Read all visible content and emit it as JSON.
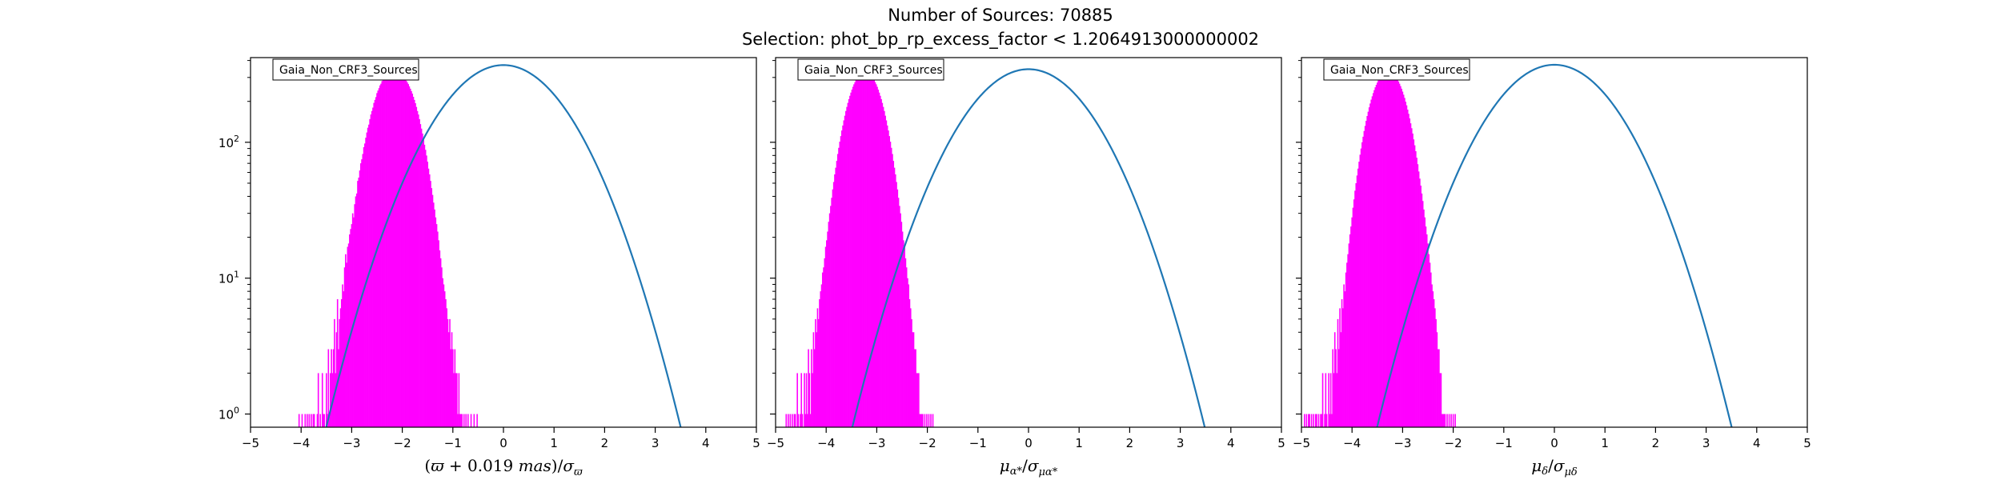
{
  "figure": {
    "title_line1": "Number of Sources: 70885",
    "title_line2": "Selection: phot_bp_rp_excess_factor < 1.2064913000000002"
  },
  "chart_data": [
    {
      "type": "line",
      "subtype": "histogram-step-with-gaussian-fit",
      "panel": 1,
      "legend": "Gaia_Non_CRF3_Sources",
      "legend_position": "top-left",
      "xlabel_parts": [
        "(",
        "ϖ",
        " + 0.019 ",
        "mas",
        ")/",
        "σ",
        "ϖ"
      ],
      "ylabel": "",
      "xlim": [
        -5,
        5
      ],
      "ylim": [
        0.8,
        420
      ],
      "yscale": "log",
      "xticks": [
        -5,
        -4,
        -3,
        -2,
        -1,
        0,
        1,
        2,
        3,
        4,
        5
      ],
      "xtick_labels": [
        "−5",
        "−4",
        "−3",
        "−2",
        "−1",
        "0",
        "1",
        "2",
        "3",
        "4",
        "5"
      ],
      "yticks": [
        1,
        10,
        100
      ],
      "ytick_labels": [
        "10",
        "10",
        "10"
      ],
      "ytick_exponents": [
        "0",
        "1",
        "2"
      ],
      "grid": false,
      "series": [
        {
          "kind": "histogram",
          "color": "#ff00ff",
          "x_start": -4.05,
          "bin_width": 0.02,
          "values": [
            1,
            0,
            0,
            1,
            0,
            0,
            1,
            0,
            1,
            0,
            1,
            0,
            1,
            0,
            1,
            1,
            0,
            0,
            1,
            2,
            0,
            1,
            0,
            2,
            1,
            1,
            0,
            2,
            1,
            3,
            1,
            2,
            3,
            2,
            3,
            5,
            2,
            4,
            7,
            3,
            5,
            6,
            7,
            9,
            8,
            12,
            15,
            13,
            17,
            18,
            21,
            23,
            25,
            30,
            28,
            35,
            40,
            42,
            52,
            55,
            62,
            70,
            75,
            82,
            92,
            98,
            108,
            118,
            128,
            135,
            148,
            160,
            170,
            180,
            195,
            205,
            215,
            230,
            240,
            250,
            262,
            270,
            282,
            290,
            300,
            305,
            312,
            318,
            322,
            326,
            330,
            332,
            336,
            338,
            340,
            338,
            336,
            333,
            330,
            326,
            322,
            318,
            312,
            306,
            300,
            292,
            284,
            276,
            268,
            258,
            248,
            238,
            228,
            216,
            205,
            194,
            182,
            170,
            160,
            148,
            136,
            126,
            116,
            106,
            96,
            88,
            80,
            72,
            64,
            58,
            52,
            46,
            41,
            36,
            32,
            28,
            25,
            22,
            19,
            16,
            14,
            12,
            10,
            9,
            8,
            7,
            6,
            5,
            4,
            5,
            3,
            4,
            3,
            2,
            3,
            2,
            2,
            1,
            2,
            1,
            1,
            1,
            0,
            1,
            0,
            1,
            0,
            1,
            0,
            0,
            1,
            0,
            0,
            1,
            0,
            0,
            1
          ]
        },
        {
          "kind": "gaussian-fit",
          "color": "#1f77b4",
          "mu": 0,
          "sigma": 1.0,
          "amplitude": 370
        }
      ]
    },
    {
      "type": "line",
      "subtype": "histogram-step-with-gaussian-fit",
      "panel": 2,
      "legend": "Gaia_Non_CRF3_Sources",
      "legend_position": "top-left",
      "xlabel_parts": [
        "μ",
        "α*",
        "/",
        "σ",
        "μα*"
      ],
      "ylabel": "",
      "xlim": [
        -5,
        5
      ],
      "ylim": [
        0.8,
        420
      ],
      "yscale": "log",
      "xticks": [
        -5,
        -4,
        -3,
        -2,
        -1,
        0,
        1,
        2,
        3,
        4,
        5
      ],
      "xtick_labels": [
        "−5",
        "−4",
        "−3",
        "−2",
        "−1",
        "0",
        "1",
        "2",
        "3",
        "4",
        "5"
      ],
      "yticks": [
        1,
        10,
        100
      ],
      "grid": false,
      "series": [
        {
          "kind": "histogram",
          "color": "#ff00ff",
          "x_start": -4.8,
          "bin_width": 0.02,
          "values": [
            1,
            0,
            1,
            0,
            1,
            0,
            1,
            0,
            1,
            1,
            0,
            2,
            1,
            0,
            1,
            2,
            1,
            0,
            2,
            1,
            2,
            1,
            3,
            2,
            1,
            3,
            2,
            4,
            3,
            5,
            4,
            6,
            5,
            7,
            8,
            9,
            11,
            12,
            14,
            17,
            19,
            22,
            26,
            30,
            34,
            39,
            45,
            51,
            58,
            65,
            73,
            82,
            91,
            101,
            111,
            122,
            133,
            145,
            157,
            170,
            182,
            195,
            208,
            220,
            232,
            244,
            256,
            267,
            277,
            287,
            296,
            304,
            311,
            317,
            322,
            326,
            329,
            331,
            332,
            331,
            329,
            326,
            322,
            317,
            311,
            304,
            296,
            287,
            277,
            267,
            256,
            244,
            232,
            220,
            208,
            195,
            182,
            170,
            157,
            145,
            133,
            122,
            111,
            101,
            91,
            82,
            73,
            65,
            58,
            51,
            45,
            39,
            34,
            30,
            26,
            22,
            19,
            17,
            14,
            12,
            10,
            9,
            7,
            6,
            5,
            4,
            4,
            3,
            3,
            2,
            2,
            2,
            1,
            1,
            1,
            1,
            0,
            1,
            0,
            1,
            0,
            1,
            0,
            1,
            0,
            1
          ]
        },
        {
          "kind": "gaussian-fit",
          "color": "#1f77b4",
          "mu": 0,
          "sigma": 1.0,
          "amplitude": 345
        }
      ]
    },
    {
      "type": "line",
      "subtype": "histogram-step-with-gaussian-fit",
      "panel": 3,
      "legend": "Gaia_Non_CRF3_Sources",
      "legend_position": "top-left",
      "xlabel_parts": [
        "μ",
        "δ",
        "/",
        "σ",
        "μδ"
      ],
      "ylabel": "",
      "xlim": [
        -5,
        5
      ],
      "ylim": [
        0.8,
        420
      ],
      "yscale": "log",
      "xticks": [
        -5,
        -4,
        -3,
        -2,
        -1,
        0,
        1,
        2,
        3,
        4,
        5
      ],
      "xtick_labels": [
        "−5",
        "−4",
        "−3",
        "−2",
        "−1",
        "0",
        "1",
        "2",
        "3",
        "4",
        "5"
      ],
      "yticks": [
        1,
        10,
        100
      ],
      "grid": false,
      "series": [
        {
          "kind": "histogram",
          "color": "#ff00ff",
          "x_start": -4.95,
          "bin_width": 0.02,
          "values": [
            1,
            0,
            1,
            0,
            1,
            1,
            0,
            1,
            0,
            1,
            0,
            1,
            1,
            0,
            1,
            0,
            1,
            1,
            2,
            0,
            1,
            2,
            1,
            0,
            2,
            1,
            2,
            1,
            3,
            2,
            4,
            3,
            2,
            5,
            3,
            6,
            4,
            7,
            6,
            9,
            8,
            11,
            13,
            15,
            18,
            21,
            24,
            28,
            33,
            38,
            44,
            50,
            57,
            64,
            72,
            81,
            90,
            100,
            110,
            121,
            132,
            144,
            156,
            168,
            181,
            193,
            206,
            218,
            230,
            242,
            254,
            265,
            275,
            285,
            294,
            302,
            310,
            316,
            322,
            326,
            330,
            332,
            334,
            334,
            333,
            331,
            328,
            324,
            319,
            313,
            306,
            298,
            289,
            280,
            270,
            259,
            248,
            236,
            224,
            212,
            199,
            187,
            174,
            162,
            150,
            138,
            127,
            116,
            105,
            95,
            86,
            77,
            69,
            61,
            54,
            48,
            42,
            37,
            32,
            28,
            24,
            21,
            18,
            15,
            13,
            11,
            9,
            8,
            7,
            6,
            5,
            4,
            3,
            3,
            2,
            2,
            1,
            1,
            1,
            1,
            0,
            1,
            0,
            1,
            0,
            1,
            0,
            1,
            0,
            1
          ]
        },
        {
          "kind": "gaussian-fit",
          "color": "#1f77b4",
          "mu": 0,
          "sigma": 1.0,
          "amplitude": 372
        }
      ]
    }
  ]
}
